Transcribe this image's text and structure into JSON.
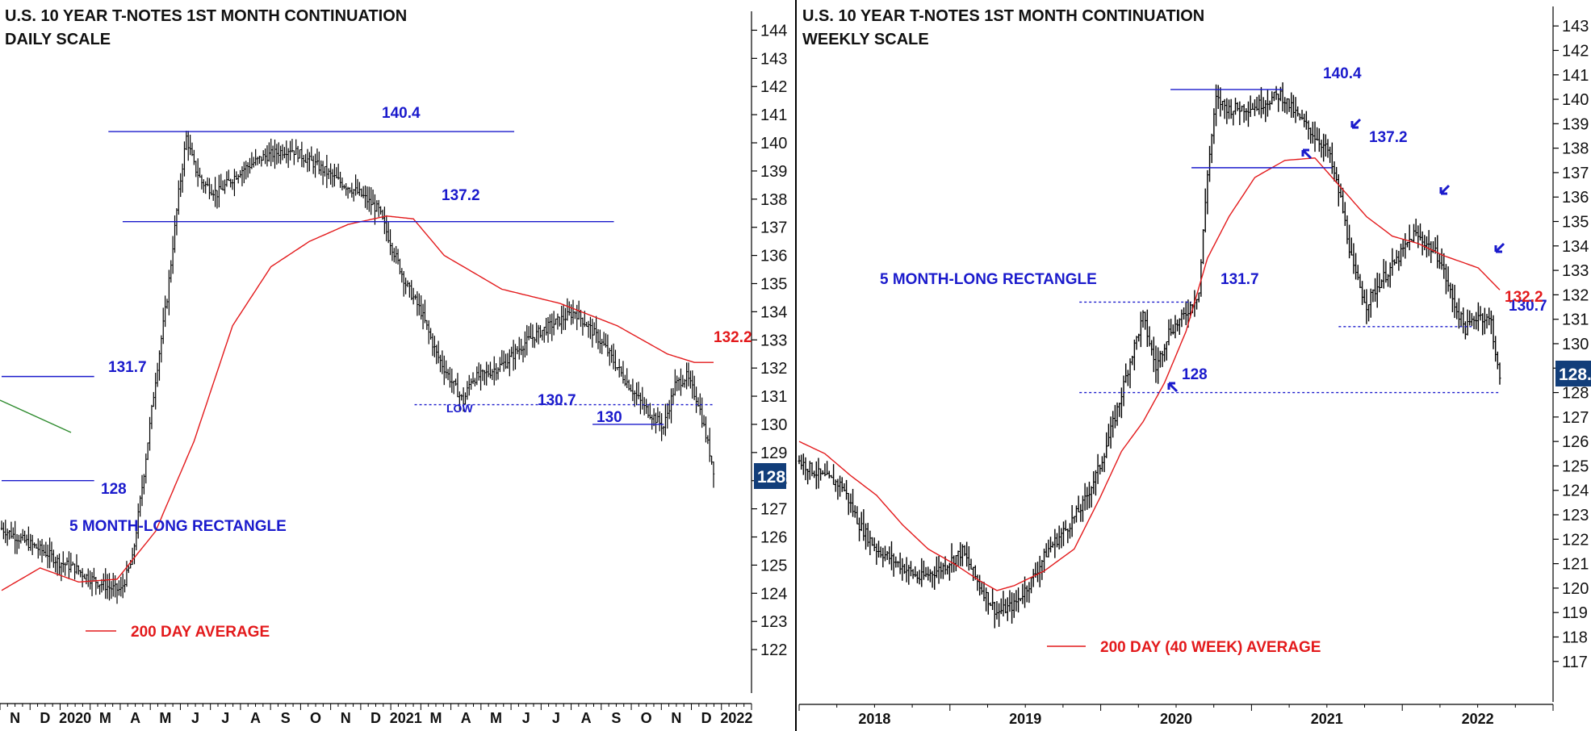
{
  "colors": {
    "price": "#000000",
    "average": "#e31a1c",
    "levels": "#1a1acc",
    "trendline": "#2e8b2e",
    "last_badge_bg": "#123e7a",
    "last_badge_text": "#ffffff",
    "axis": "#000000"
  },
  "chart_data": [
    {
      "type": "ohlc",
      "scale": "daily",
      "title_line1": "U.S. 10 YEAR T-NOTES 1ST MONTH CONTINUATION",
      "title_line2": "DAILY SCALE",
      "ylim": [
        121.2,
        144.5
      ],
      "y_ticks": [
        122,
        123,
        124,
        125,
        126,
        127,
        128,
        129,
        130,
        131,
        132,
        133,
        134,
        135,
        136,
        137,
        138,
        139,
        140,
        141,
        142,
        143,
        144
      ],
      "x_labels": [
        "N",
        "D",
        "2020",
        "M",
        "A",
        "M",
        "J",
        "J",
        "A",
        "S",
        "O",
        "N",
        "D",
        "2021",
        "M",
        "A",
        "M",
        "J",
        "J",
        "A",
        "S",
        "O",
        "N",
        "D",
        "2022"
      ],
      "last_value_badge": "128.",
      "price_path_keypoints": [
        [
          0,
          126.3
        ],
        [
          8,
          126.0
        ],
        [
          16,
          125.7
        ],
        [
          24,
          125.4
        ],
        [
          30,
          125.1
        ],
        [
          38,
          124.9
        ],
        [
          44,
          124.6
        ],
        [
          50,
          124.4
        ],
        [
          56,
          124.2
        ],
        [
          62,
          124.1
        ],
        [
          68,
          125.2
        ],
        [
          74,
          128.3
        ],
        [
          80,
          131.6
        ],
        [
          86,
          134.5
        ],
        [
          92,
          138.2
        ],
        [
          96,
          140.2
        ],
        [
          100,
          139.2
        ],
        [
          104,
          138.6
        ],
        [
          112,
          138.2
        ],
        [
          124,
          139.0
        ],
        [
          136,
          139.5
        ],
        [
          150,
          139.8
        ],
        [
          166,
          139.1
        ],
        [
          176,
          138.6
        ],
        [
          186,
          138.2
        ],
        [
          196,
          137.6
        ],
        [
          204,
          136.1
        ],
        [
          210,
          135.0
        ],
        [
          218,
          134.0
        ],
        [
          226,
          132.5
        ],
        [
          234,
          131.5
        ],
        [
          240,
          130.8
        ],
        [
          244,
          131.6
        ],
        [
          252,
          131.8
        ],
        [
          262,
          132.2
        ],
        [
          272,
          132.9
        ],
        [
          280,
          133.3
        ],
        [
          290,
          133.7
        ],
        [
          298,
          134.0
        ],
        [
          306,
          133.4
        ],
        [
          314,
          132.7
        ],
        [
          322,
          131.8
        ],
        [
          328,
          131.2
        ],
        [
          334,
          130.6
        ],
        [
          340,
          130.2
        ],
        [
          344,
          129.9
        ],
        [
          350,
          131.4
        ],
        [
          356,
          131.7
        ],
        [
          362,
          130.8
        ],
        [
          366,
          129.6
        ],
        [
          370,
          128.4
        ]
      ],
      "average_keypoints": [
        [
          0,
          124.1
        ],
        [
          20,
          124.9
        ],
        [
          40,
          124.4
        ],
        [
          60,
          124.5
        ],
        [
          80,
          126.2
        ],
        [
          100,
          129.4
        ],
        [
          120,
          133.5
        ],
        [
          140,
          135.6
        ],
        [
          160,
          136.5
        ],
        [
          180,
          137.1
        ],
        [
          200,
          137.4
        ],
        [
          214,
          137.3
        ],
        [
          230,
          136.0
        ],
        [
          260,
          134.8
        ],
        [
          290,
          134.3
        ],
        [
          320,
          133.5
        ],
        [
          346,
          132.5
        ],
        [
          360,
          132.2
        ]
      ],
      "levels": [
        {
          "label": "140.4",
          "value": 140.4,
          "style": "solid",
          "x_from": 0.15,
          "x_to": 0.72
        },
        {
          "label": "137.2",
          "value": 137.2,
          "style": "solid",
          "x_from": 0.17,
          "x_to": 0.86
        },
        {
          "label": "131.7",
          "value": 131.7,
          "style": "solid",
          "x_from": 0.0,
          "x_to": 0.13
        },
        {
          "label": "128",
          "value": 128,
          "style": "solid",
          "x_from": 0.0,
          "x_to": 0.13
        },
        {
          "label": "130.7",
          "value": 130.7,
          "style": "dotted",
          "x_from": 0.58,
          "x_to": 1.0
        },
        {
          "label": "130",
          "value": 130,
          "style": "solid",
          "x_from": 0.83,
          "x_to": 0.93
        }
      ],
      "annotations": {
        "rectangle": "5 MONTH-LONG RECTANGLE",
        "legend": "200 DAY AVERAGE",
        "low": "LOW",
        "avg_value": "132.2"
      }
    },
    {
      "type": "ohlc",
      "scale": "weekly",
      "title_line1": "U.S. 10 YEAR T-NOTES 1ST MONTH CONTINUATION",
      "title_line2": "WEEKLY SCALE",
      "ylim": [
        116.2,
        143.6
      ],
      "y_ticks": [
        117,
        118,
        119,
        120,
        121,
        122,
        123,
        124,
        125,
        126,
        127,
        128,
        129,
        130,
        131,
        132,
        133,
        134,
        135,
        136,
        137,
        138,
        139,
        140,
        141,
        142,
        143
      ],
      "x_labels": [
        "2018",
        "2019",
        "2020",
        "2021",
        "2022"
      ],
      "last_value_badge": "128.",
      "price_path_keypoints": [
        [
          0,
          125.2
        ],
        [
          10,
          124.6
        ],
        [
          20,
          124.2
        ],
        [
          28,
          122.6
        ],
        [
          36,
          121.6
        ],
        [
          46,
          121.0
        ],
        [
          56,
          120.4
        ],
        [
          66,
          120.8
        ],
        [
          76,
          121.5
        ],
        [
          84,
          120.1
        ],
        [
          92,
          119.0
        ],
        [
          100,
          119.3
        ],
        [
          108,
          120.3
        ],
        [
          116,
          121.6
        ],
        [
          124,
          122.4
        ],
        [
          132,
          123.4
        ],
        [
          140,
          125.0
        ],
        [
          148,
          127.3
        ],
        [
          154,
          129.3
        ],
        [
          160,
          131.1
        ],
        [
          166,
          129.0
        ],
        [
          172,
          130.5
        ],
        [
          178,
          131.0
        ],
        [
          186,
          132.1
        ],
        [
          190,
          137.0
        ],
        [
          194,
          140.0
        ],
        [
          200,
          139.6
        ],
        [
          212,
          139.7
        ],
        [
          224,
          140.2
        ],
        [
          232,
          139.3
        ],
        [
          240,
          138.5
        ],
        [
          246,
          137.9
        ],
        [
          252,
          135.9
        ],
        [
          258,
          133.0
        ],
        [
          264,
          131.6
        ],
        [
          270,
          132.5
        ],
        [
          278,
          133.4
        ],
        [
          286,
          134.5
        ],
        [
          292,
          134.1
        ],
        [
          298,
          133.5
        ],
        [
          304,
          131.8
        ],
        [
          310,
          130.6
        ],
        [
          316,
          131.2
        ],
        [
          322,
          130.9
        ],
        [
          326,
          128.4
        ]
      ],
      "average_keypoints": [
        [
          0,
          126.0
        ],
        [
          12,
          125.5
        ],
        [
          24,
          124.6
        ],
        [
          36,
          123.8
        ],
        [
          48,
          122.6
        ],
        [
          60,
          121.6
        ],
        [
          72,
          121.0
        ],
        [
          84,
          120.3
        ],
        [
          92,
          119.9
        ],
        [
          100,
          120.1
        ],
        [
          114,
          120.7
        ],
        [
          128,
          121.6
        ],
        [
          140,
          123.7
        ],
        [
          150,
          125.6
        ],
        [
          160,
          126.8
        ],
        [
          170,
          128.4
        ],
        [
          180,
          130.5
        ],
        [
          190,
          133.5
        ],
        [
          200,
          135.2
        ],
        [
          212,
          136.8
        ],
        [
          226,
          137.5
        ],
        [
          240,
          137.6
        ],
        [
          252,
          136.4
        ],
        [
          264,
          135.2
        ],
        [
          276,
          134.4
        ],
        [
          288,
          134.1
        ],
        [
          300,
          133.6
        ],
        [
          316,
          133.1
        ],
        [
          326,
          132.2
        ]
      ],
      "levels": [
        {
          "label": "140.4",
          "value": 140.4,
          "style": "solid",
          "x_from": 0.53,
          "x_to": 0.69
        },
        {
          "label": "137.2",
          "value": 137.2,
          "style": "solid",
          "x_from": 0.56,
          "x_to": 0.76
        },
        {
          "label": "131.7",
          "value": 131.7,
          "style": "dotted",
          "x_from": 0.4,
          "x_to": 0.56
        },
        {
          "label": "130.7",
          "value": 130.7,
          "style": "dotted",
          "x_from": 0.77,
          "x_to": 0.96
        },
        {
          "label": "128",
          "value": 128,
          "style": "dotted",
          "x_from": 0.4,
          "x_to": 1.0
        }
      ],
      "annotations": {
        "rectangle": "5 MONTH-LONG RECTANGLE",
        "legend": "200 DAY (40 WEEK) AVERAGE",
        "avg_value": "132.2"
      }
    }
  ]
}
